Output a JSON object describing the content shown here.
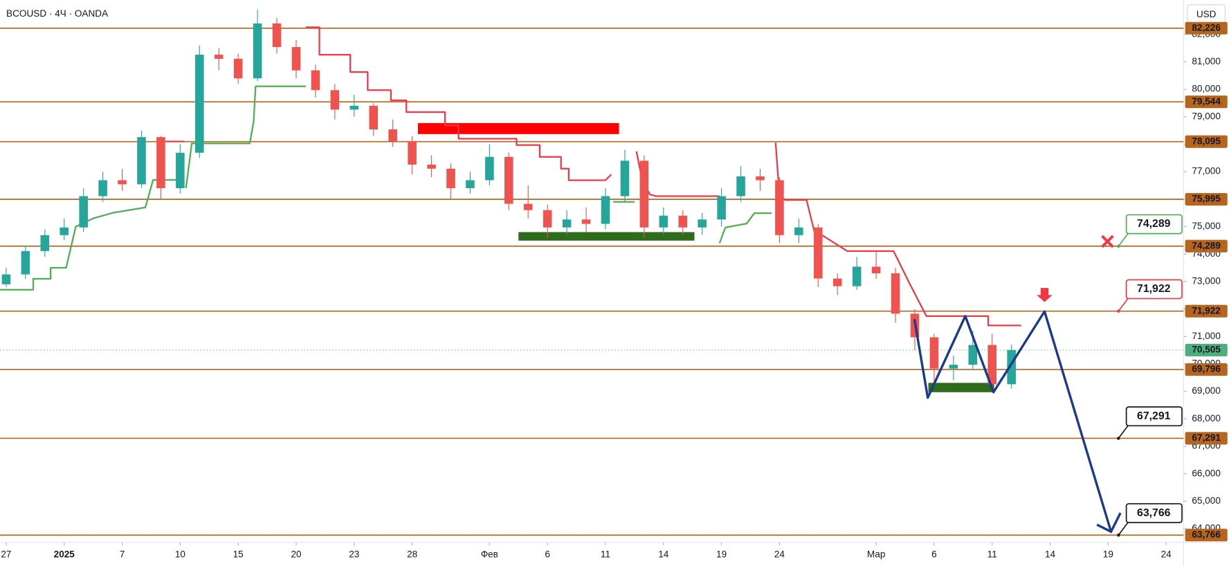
{
  "header": {
    "symbol": "BCOUSD · 4Ч · OANDA",
    "currency": "USD"
  },
  "chart_data": {
    "type": "candlestick",
    "xlim": [
      -0.32,
      60.9
    ],
    "ylim": [
      63500,
      83250
    ],
    "up_color": "#26a69a",
    "down_color": "#ef5350",
    "xticks": [
      {
        "value": 0,
        "label": "27"
      },
      {
        "value": 3,
        "label": "2025",
        "bold": true
      },
      {
        "value": 6,
        "label": "7"
      },
      {
        "value": 9,
        "label": "10"
      },
      {
        "value": 12,
        "label": "15"
      },
      {
        "value": 15,
        "label": "20"
      },
      {
        "value": 18,
        "label": "23"
      },
      {
        "value": 21,
        "label": "28"
      },
      {
        "value": 25,
        "label": "Фев"
      },
      {
        "value": 28,
        "label": "6"
      },
      {
        "value": 31,
        "label": "11"
      },
      {
        "value": 34,
        "label": "14"
      },
      {
        "value": 37,
        "label": "19"
      },
      {
        "value": 40,
        "label": "24"
      },
      {
        "value": 45,
        "label": "Мар"
      },
      {
        "value": 48,
        "label": "6"
      },
      {
        "value": 51,
        "label": "11"
      },
      {
        "value": 54,
        "label": "14"
      },
      {
        "value": 57,
        "label": "19"
      },
      {
        "value": 60,
        "label": "24"
      }
    ],
    "yticks": [
      {
        "value": 64000,
        "label": "64,000"
      },
      {
        "value": 65000,
        "label": "65,000"
      },
      {
        "value": 66000,
        "label": "66,000"
      },
      {
        "value": 67000,
        "label": "67,000"
      },
      {
        "value": 68000,
        "label": "68,000"
      },
      {
        "value": 69000,
        "label": "69,000"
      },
      {
        "value": 70000,
        "label": "70,000"
      },
      {
        "value": 71000,
        "label": "71,000"
      },
      {
        "value": 72000,
        "label": "72,000"
      },
      {
        "value": 73000,
        "label": "73,000"
      },
      {
        "value": 74000,
        "label": "74,000"
      },
      {
        "value": 75000,
        "label": "75,000"
      },
      {
        "value": 76000,
        "label": "76,000"
      },
      {
        "value": 77000,
        "label": "77,000"
      },
      {
        "value": 78000,
        "label": "78,000"
      },
      {
        "value": 79000,
        "label": "79,000"
      },
      {
        "value": 80000,
        "label": "80,000"
      },
      {
        "value": 81000,
        "label": "81,000"
      },
      {
        "value": 82000,
        "label": "82,000"
      }
    ],
    "candles": [
      {
        "x": 0,
        "o": 72900,
        "h": 73500,
        "l": 72800,
        "c": 73260
      },
      {
        "x": 1,
        "o": 73260,
        "h": 74300,
        "l": 73100,
        "c": 74110
      },
      {
        "x": 2,
        "o": 74110,
        "h": 74900,
        "l": 73900,
        "c": 74690
      },
      {
        "x": 3,
        "o": 74690,
        "h": 75300,
        "l": 74500,
        "c": 74970
      },
      {
        "x": 4,
        "o": 74970,
        "h": 76400,
        "l": 74800,
        "c": 76110
      },
      {
        "x": 5,
        "o": 76110,
        "h": 77000,
        "l": 75900,
        "c": 76690
      },
      {
        "x": 6,
        "o": 76690,
        "h": 77100,
        "l": 76300,
        "c": 76540
      },
      {
        "x": 7,
        "o": 76540,
        "h": 78500,
        "l": 76400,
        "c": 78260
      },
      {
        "x": 8,
        "o": 78260,
        "h": 78300,
        "l": 76000,
        "c": 76400
      },
      {
        "x": 9,
        "o": 76400,
        "h": 78000,
        "l": 76200,
        "c": 77690
      },
      {
        "x": 10,
        "o": 77690,
        "h": 81600,
        "l": 77500,
        "c": 81260
      },
      {
        "x": 11,
        "o": 81260,
        "h": 81500,
        "l": 80700,
        "c": 81110
      },
      {
        "x": 12,
        "o": 81110,
        "h": 81300,
        "l": 80200,
        "c": 80400
      },
      {
        "x": 13,
        "o": 80400,
        "h": 82900,
        "l": 80300,
        "c": 82400
      },
      {
        "x": 14,
        "o": 82400,
        "h": 82600,
        "l": 81300,
        "c": 81540
      },
      {
        "x": 15,
        "o": 81540,
        "h": 81800,
        "l": 80400,
        "c": 80690
      },
      {
        "x": 16,
        "o": 80690,
        "h": 80900,
        "l": 79700,
        "c": 79970
      },
      {
        "x": 17,
        "o": 79970,
        "h": 80200,
        "l": 78900,
        "c": 79260
      },
      {
        "x": 18,
        "o": 79260,
        "h": 79800,
        "l": 79000,
        "c": 79400
      },
      {
        "x": 19,
        "o": 79400,
        "h": 79500,
        "l": 78300,
        "c": 78540
      },
      {
        "x": 20,
        "o": 78540,
        "h": 78900,
        "l": 77900,
        "c": 78110
      },
      {
        "x": 21,
        "o": 78110,
        "h": 78300,
        "l": 76900,
        "c": 77260
      },
      {
        "x": 22,
        "o": 77260,
        "h": 77600,
        "l": 76800,
        "c": 77110
      },
      {
        "x": 23,
        "o": 77110,
        "h": 77300,
        "l": 76000,
        "c": 76400
      },
      {
        "x": 24,
        "o": 76400,
        "h": 77000,
        "l": 76200,
        "c": 76690
      },
      {
        "x": 25,
        "o": 76690,
        "h": 78000,
        "l": 76500,
        "c": 77540
      },
      {
        "x": 26,
        "o": 77540,
        "h": 77700,
        "l": 75600,
        "c": 75830
      },
      {
        "x": 27,
        "o": 75830,
        "h": 76500,
        "l": 75300,
        "c": 75600
      },
      {
        "x": 28,
        "o": 75600,
        "h": 75800,
        "l": 74600,
        "c": 74970
      },
      {
        "x": 29,
        "o": 74970,
        "h": 75600,
        "l": 74700,
        "c": 75260
      },
      {
        "x": 30,
        "o": 75260,
        "h": 75700,
        "l": 74800,
        "c": 75100
      },
      {
        "x": 31,
        "o": 75100,
        "h": 76400,
        "l": 74900,
        "c": 76110
      },
      {
        "x": 32,
        "o": 76110,
        "h": 77800,
        "l": 75900,
        "c": 77400
      },
      {
        "x": 33,
        "o": 77400,
        "h": 77600,
        "l": 74600,
        "c": 74970
      },
      {
        "x": 34,
        "o": 74970,
        "h": 75700,
        "l": 74700,
        "c": 75400
      },
      {
        "x": 35,
        "o": 75400,
        "h": 75600,
        "l": 74700,
        "c": 74970
      },
      {
        "x": 36,
        "o": 74970,
        "h": 75500,
        "l": 74700,
        "c": 75260
      },
      {
        "x": 37,
        "o": 75260,
        "h": 76400,
        "l": 75000,
        "c": 76110
      },
      {
        "x": 38,
        "o": 76110,
        "h": 77200,
        "l": 75900,
        "c": 76830
      },
      {
        "x": 39,
        "o": 76830,
        "h": 77100,
        "l": 76300,
        "c": 76690
      },
      {
        "x": 40,
        "o": 76690,
        "h": 76800,
        "l": 74400,
        "c": 74690
      },
      {
        "x": 41,
        "o": 74690,
        "h": 75300,
        "l": 74400,
        "c": 74970
      },
      {
        "x": 42,
        "o": 74970,
        "h": 75100,
        "l": 72800,
        "c": 73110
      },
      {
        "x": 43,
        "o": 73110,
        "h": 73300,
        "l": 72500,
        "c": 72830
      },
      {
        "x": 44,
        "o": 72830,
        "h": 73900,
        "l": 72700,
        "c": 73540
      },
      {
        "x": 45,
        "o": 73540,
        "h": 74100,
        "l": 73100,
        "c": 73300
      },
      {
        "x": 46,
        "o": 73300,
        "h": 73500,
        "l": 71500,
        "c": 71830
      },
      {
        "x": 47,
        "o": 71830,
        "h": 72000,
        "l": 70500,
        "c": 70970
      },
      {
        "x": 48,
        "o": 70970,
        "h": 71100,
        "l": 69200,
        "c": 69830
      },
      {
        "x": 49,
        "o": 69830,
        "h": 70300,
        "l": 69400,
        "c": 69970
      },
      {
        "x": 50,
        "o": 69970,
        "h": 71200,
        "l": 69800,
        "c": 70690
      },
      {
        "x": 51,
        "o": 70690,
        "h": 71100,
        "l": 69000,
        "c": 69260
      },
      {
        "x": 52,
        "o": 69260,
        "h": 70700,
        "l": 69100,
        "c": 70505
      }
    ],
    "levels": {
      "color": "#b5651d",
      "items": [
        {
          "value": 82226,
          "label": "82,226"
        },
        {
          "value": 79544,
          "label": "79,544"
        },
        {
          "value": 78095,
          "label": "78,095"
        },
        {
          "value": 75995,
          "label": "75,995"
        },
        {
          "value": 74289,
          "label": "74,289"
        },
        {
          "value": 71922,
          "label": "71,922"
        },
        {
          "value": 69796,
          "label": "69,796"
        },
        {
          "value": 67291,
          "label": "67,291"
        },
        {
          "value": 63766,
          "label": "63,766"
        }
      ]
    },
    "last_price": {
      "value": 70505,
      "label": "70,505",
      "color": "#4caf7d"
    },
    "support_line": {
      "color": "#4caf50",
      "x": [
        -0.32,
        1.4,
        1.4,
        2.3,
        2.3,
        3.1,
        3.6,
        4.5,
        5.5,
        7.2,
        7.6,
        8.9,
        null,
        9.3,
        9.6,
        12.6,
        12.8,
        12.9,
        15.5,
        null,
        31.4,
        32.5,
        null,
        36.9,
        37.2,
        38.3,
        38.7,
        39.6
      ],
      "values": [
        72700,
        72700,
        73100,
        73100,
        73500,
        73500,
        75000,
        75300,
        75500,
        75700,
        76700,
        76700,
        null,
        76400,
        78030,
        78030,
        78830,
        80110,
        80110,
        null,
        75900,
        75900,
        null,
        74400,
        74970,
        75110,
        75490,
        75490
      ]
    },
    "resistance_line": {
      "color": "#f23645",
      "x": [
        8,
        9.2,
        null,
        15.5,
        16.2,
        16.2,
        17.8,
        17.8,
        18.7,
        18.7,
        19.9,
        19.9,
        20.7,
        20.7,
        22.7,
        22.7,
        23.4,
        23.4,
        26.4,
        26.4,
        27.6,
        27.6,
        28.7,
        28.7,
        29.1,
        29.1,
        31,
        31.3,
        null,
        32.6,
        32.9,
        33.3,
        33.6,
        36.9,
        null,
        39.8,
        40,
        40.3,
        41.4,
        41.8,
        42.2,
        43.5,
        45.9,
        46.7,
        47.6,
        50.8,
        50.8,
        52.5
      ],
      "values": [
        78100,
        78100,
        null,
        82260,
        82260,
        81260,
        81260,
        80630,
        80630,
        79970,
        79970,
        79600,
        79600,
        79170,
        79170,
        78690,
        78690,
        78200,
        78200,
        77970,
        77970,
        77540,
        77540,
        77110,
        77110,
        76690,
        76690,
        76900,
        null,
        77740,
        76690,
        76170,
        76110,
        76110,
        null,
        78060,
        76110,
        75970,
        75970,
        74830,
        74690,
        74110,
        74110,
        72970,
        71740,
        71740,
        71400,
        71400
      ]
    },
    "zones": [
      {
        "x": [
          21.3,
          31.7
        ],
        "values": [
          78370,
          78770
        ],
        "color": "#ff0000"
      },
      {
        "x": [
          26.5,
          35.6
        ],
        "values": [
          74490,
          74800
        ],
        "color": "#2e6b1a"
      },
      {
        "x": [
          47.7,
          51.1
        ],
        "values": [
          68970,
          69310
        ],
        "color": "#2e6b1a"
      }
    ],
    "pattern": {
      "color": "#1a3a8f",
      "x": [
        46.98,
        47.67,
        49.61,
        51.07,
        53.71,
        57.15
      ],
      "values": [
        71630,
        68770,
        71740,
        68970,
        71910,
        63890
      ]
    },
    "callouts": [
      {
        "value": 74289,
        "label": "74,289",
        "color": "#4caf50"
      },
      {
        "value": 71922,
        "label": "71,922",
        "color": "#f23645"
      },
      {
        "value": 67291,
        "label": "67,291",
        "color": "#131722"
      },
      {
        "value": 63766,
        "label": "63,766",
        "color": "#131722"
      }
    ]
  }
}
